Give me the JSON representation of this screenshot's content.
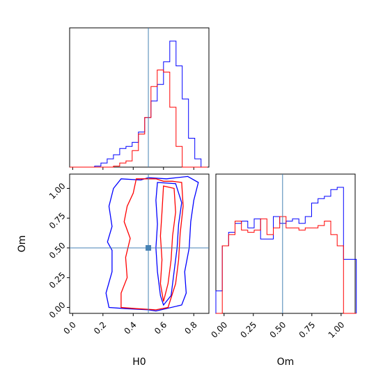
{
  "chart_data": {
    "type": "corner",
    "parameters": [
      "H0",
      "Om"
    ],
    "truth": {
      "H0": 0.5,
      "Om": 0.5
    },
    "truth_color": "#4682b4",
    "series": [
      {
        "name": "",
        "color": "#0000ff"
      },
      {
        "name": "",
        "color": "#ff0000"
      }
    ],
    "hist_H0": {
      "xlim": [
        -0.02,
        0.9
      ],
      "edges": [
        -0.02,
        0.0213,
        0.0627,
        0.104,
        0.1453,
        0.1867,
        0.228,
        0.2693,
        0.3107,
        0.352,
        0.3933,
        0.4347,
        0.476,
        0.5173,
        0.5587,
        0.6,
        0.6413,
        0.6827,
        0.724,
        0.7653,
        0.8067,
        0.848,
        0.8893
      ],
      "blue": [
        0,
        0,
        0,
        0,
        0.5,
        2,
        4,
        6,
        9,
        10,
        12,
        17,
        24,
        32,
        40,
        51,
        61,
        49,
        33,
        14,
        4,
        0
      ],
      "red": [
        0,
        0,
        0,
        0,
        0,
        0,
        0,
        0.5,
        2,
        3,
        8,
        16,
        24,
        39,
        47,
        46,
        29,
        10,
        0,
        0,
        0,
        0
      ]
    },
    "hist_Om": {
      "xlim": [
        -0.07,
        1.12
      ],
      "edges": [
        -0.07,
        -0.0155,
        0.0391,
        0.0936,
        0.1482,
        0.2027,
        0.2573,
        0.3118,
        0.3664,
        0.4209,
        0.4755,
        0.53,
        0.5845,
        0.6391,
        0.6936,
        0.7482,
        0.8027,
        0.8573,
        0.9118,
        0.9664,
        1.0209,
        1.0755,
        1.13
      ],
      "blue": [
        10,
        30,
        36,
        40,
        41,
        38,
        42,
        33,
        33,
        43,
        40,
        41,
        42,
        40,
        43,
        49,
        51,
        52,
        55,
        56,
        24,
        24
      ],
      "red": [
        0,
        30,
        35,
        41,
        37,
        36,
        37,
        42,
        35,
        38,
        43,
        38,
        38,
        37,
        38,
        38,
        39,
        41,
        35,
        30,
        0,
        0
      ]
    },
    "contour": {
      "xlim": [
        -0.02,
        0.9
      ],
      "ylim": [
        -0.05,
        1.12
      ],
      "blue_outer": [
        [
          0.32,
          1.08
        ],
        [
          0.45,
          1.07
        ],
        [
          0.5,
          1.09
        ],
        [
          0.62,
          1.08
        ],
        [
          0.76,
          1.1
        ],
        [
          0.83,
          1.05
        ],
        [
          0.8,
          0.9
        ],
        [
          0.78,
          0.72
        ],
        [
          0.77,
          0.5
        ],
        [
          0.74,
          0.3
        ],
        [
          0.75,
          0.12
        ],
        [
          0.72,
          0.02
        ],
        [
          0.55,
          -0.03
        ],
        [
          0.5,
          -0.02
        ],
        [
          0.35,
          -0.01
        ],
        [
          0.24,
          0.0
        ],
        [
          0.22,
          0.12
        ],
        [
          0.26,
          0.3
        ],
        [
          0.26,
          0.48
        ],
        [
          0.23,
          0.55
        ],
        [
          0.26,
          0.68
        ],
        [
          0.24,
          0.85
        ],
        [
          0.27,
          1.0
        ],
        [
          0.32,
          1.08
        ]
      ],
      "blue_inner": [
        [
          0.56,
          1.05
        ],
        [
          0.68,
          1.04
        ],
        [
          0.72,
          0.88
        ],
        [
          0.7,
          0.7
        ],
        [
          0.69,
          0.5
        ],
        [
          0.67,
          0.3
        ],
        [
          0.65,
          0.1
        ],
        [
          0.6,
          0.02
        ],
        [
          0.58,
          0.1
        ],
        [
          0.56,
          0.3
        ],
        [
          0.55,
          0.5
        ],
        [
          0.56,
          0.7
        ],
        [
          0.55,
          0.9
        ],
        [
          0.56,
          1.05
        ]
      ],
      "red_outer": [
        [
          0.42,
          1.08
        ],
        [
          0.55,
          1.08
        ],
        [
          0.6,
          1.06
        ],
        [
          0.66,
          1.06
        ],
        [
          0.72,
          1.05
        ],
        [
          0.73,
          0.85
        ],
        [
          0.71,
          0.62
        ],
        [
          0.7,
          0.4
        ],
        [
          0.68,
          0.2
        ],
        [
          0.63,
          0.0
        ],
        [
          0.55,
          -0.02
        ],
        [
          0.42,
          -0.01
        ],
        [
          0.32,
          0.0
        ],
        [
          0.32,
          0.12
        ],
        [
          0.36,
          0.25
        ],
        [
          0.35,
          0.42
        ],
        [
          0.38,
          0.58
        ],
        [
          0.34,
          0.72
        ],
        [
          0.36,
          0.85
        ],
        [
          0.4,
          0.96
        ],
        [
          0.42,
          1.08
        ]
      ],
      "red_inner": [
        [
          0.6,
          1.02
        ],
        [
          0.67,
          1.0
        ],
        [
          0.68,
          0.8
        ],
        [
          0.66,
          0.6
        ],
        [
          0.65,
          0.4
        ],
        [
          0.63,
          0.2
        ],
        [
          0.6,
          0.05
        ],
        [
          0.58,
          0.2
        ],
        [
          0.59,
          0.4
        ],
        [
          0.58,
          0.6
        ],
        [
          0.59,
          0.8
        ],
        [
          0.6,
          1.02
        ]
      ]
    }
  },
  "labels": {
    "H0": "H0",
    "Om": "Om",
    "ylabel": "Om"
  },
  "ticks": {
    "H0": [
      "0.0",
      "0.2",
      "0.4",
      "0.6",
      "0.8"
    ],
    "H0_values": [
      0.0,
      0.2,
      0.4,
      0.6,
      0.8
    ],
    "Om": [
      "0.00",
      "0.25",
      "0.50",
      "0.75",
      "1.00"
    ],
    "Om_values": [
      0.0,
      0.25,
      0.5,
      0.75,
      1.0
    ]
  }
}
